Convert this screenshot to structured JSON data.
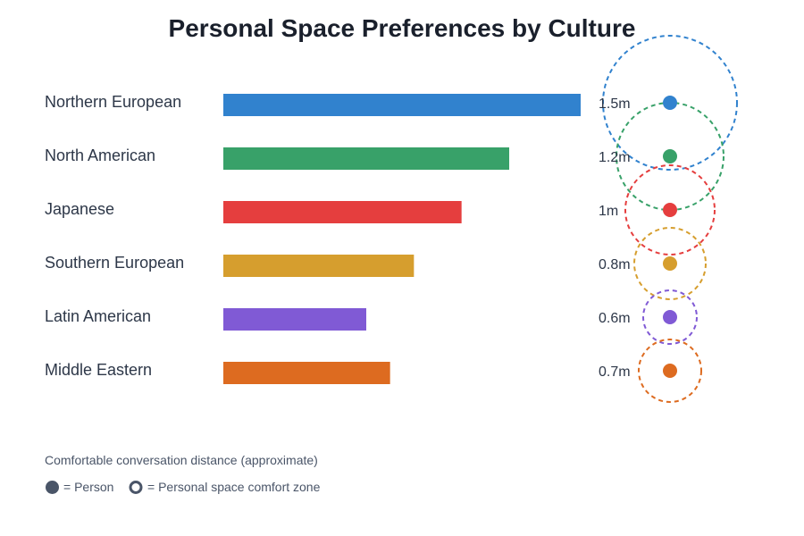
{
  "chart_data": {
    "type": "bar",
    "orientation": "horizontal",
    "title": "Personal Space Preferences by Culture",
    "categories": [
      "Northern European",
      "North American",
      "Japanese",
      "Southern European",
      "Latin American",
      "Middle Eastern"
    ],
    "values": [
      1.5,
      1.2,
      1.0,
      0.8,
      0.6,
      0.7
    ],
    "value_labels": [
      "1.5m",
      "1.2m",
      "1m",
      "0.8m",
      "0.6m",
      "0.7m"
    ],
    "unit": "m",
    "colors": [
      "#3182ce",
      "#38a169",
      "#e53e3e",
      "#d69e2e",
      "#805ad5",
      "#dd6b20"
    ],
    "xlim": [
      0,
      1.5
    ],
    "grid": false,
    "caption": "Comfortable conversation distance (approximate)",
    "legend": [
      {
        "icon": "filled-circle",
        "label": "= Person"
      },
      {
        "icon": "ring",
        "label": "= Personal space comfort zone"
      }
    ]
  }
}
